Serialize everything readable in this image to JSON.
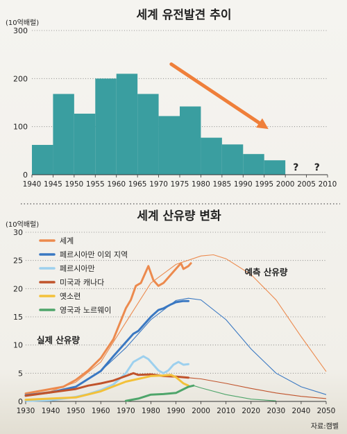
{
  "chart_data": [
    {
      "type": "bar",
      "title": "세계 유전발견 추이",
      "ylabel": "(10억배럴)",
      "ylim": [
        0,
        300
      ],
      "yticks": [
        0,
        100,
        200,
        300
      ],
      "xticks": [
        "1940",
        "1945",
        "1950",
        "1955",
        "1960",
        "1965",
        "1970",
        "1975",
        "1980",
        "1985",
        "1990",
        "1995",
        "2000",
        "2005",
        "2010"
      ],
      "bins": [
        {
          "from": 1940,
          "to": 1945,
          "value": 62
        },
        {
          "from": 1945,
          "to": 1950,
          "value": 168
        },
        {
          "from": 1950,
          "to": 1955,
          "value": 127
        },
        {
          "from": 1955,
          "to": 1960,
          "value": 200
        },
        {
          "from": 1960,
          "to": 1965,
          "value": 210
        },
        {
          "from": 1965,
          "to": 1970,
          "value": 168
        },
        {
          "from": 1970,
          "to": 1975,
          "value": 122
        },
        {
          "from": 1975,
          "to": 1980,
          "value": 142
        },
        {
          "from": 1980,
          "to": 1985,
          "value": 77
        },
        {
          "from": 1985,
          "to": 1990,
          "value": 63
        },
        {
          "from": 1990,
          "to": 1995,
          "value": 43
        },
        {
          "from": 1995,
          "to": 2000,
          "value": 30
        }
      ],
      "unknown_marks": [
        {
          "x": 2002.5,
          "text": "?"
        },
        {
          "x": 2007.5,
          "text": "?"
        }
      ],
      "trend_arrow": {
        "from": [
          1973,
          230
        ],
        "to": [
          1996,
          95
        ],
        "color": "#ef7f3a"
      },
      "bar_color": "#3a9ea0"
    },
    {
      "type": "line",
      "title": "세계 산유량 변화",
      "ylabel": "(10억배럴)",
      "ylim": [
        0,
        30
      ],
      "xlim": [
        1930,
        2050
      ],
      "yticks": [
        0,
        5,
        10,
        15,
        20,
        25,
        30
      ],
      "xticks": [
        "1930",
        "1940",
        "1950",
        "1960",
        "1970",
        "1980",
        "1990",
        "2000",
        "2010",
        "2020",
        "2030",
        "2040",
        "2050"
      ],
      "legend_position": "top-left",
      "annotations": [
        {
          "text": "예측 산유량",
          "x": 2026,
          "y": 22.4
        },
        {
          "text": "실제 산유량",
          "x": 1943,
          "y": 10.3
        }
      ],
      "series": [
        {
          "name": "세계",
          "color": "#ec8a4e",
          "actual": [
            [
              1930,
              1.4
            ],
            [
              1935,
              1.8
            ],
            [
              1940,
              2.2
            ],
            [
              1945,
              2.6
            ],
            [
              1950,
              3.8
            ],
            [
              1955,
              5.5
            ],
            [
              1960,
              7.7
            ],
            [
              1965,
              11
            ],
            [
              1970,
              16.5
            ],
            [
              1972,
              18
            ],
            [
              1974,
              20.5
            ],
            [
              1976,
              21
            ],
            [
              1978,
              23
            ],
            [
              1979,
              24
            ],
            [
              1981,
              21.5
            ],
            [
              1983,
              20.5
            ],
            [
              1985,
              21
            ],
            [
              1987,
              22
            ],
            [
              1989,
              23
            ],
            [
              1991,
              24
            ],
            [
              1992,
              24.5
            ],
            [
              1993,
              23.5
            ],
            [
              1995,
              24
            ],
            [
              1996,
              24.5
            ]
          ],
          "forecast": [
            [
              1930,
              1.2
            ],
            [
              1940,
              1.8
            ],
            [
              1950,
              3.4
            ],
            [
              1960,
              7
            ],
            [
              1970,
              14
            ],
            [
              1980,
              21
            ],
            [
              1990,
              24.3
            ],
            [
              2000,
              25.8
            ],
            [
              2005,
              26
            ],
            [
              2010,
              25.3
            ],
            [
              2020,
              22.5
            ],
            [
              2030,
              18
            ],
            [
              2040,
              11.5
            ],
            [
              2050,
              5.3
            ]
          ]
        },
        {
          "name": "페르시아만 이외 지역",
          "color": "#3a78c2",
          "actual": [
            [
              1930,
              1.1
            ],
            [
              1940,
              1.6
            ],
            [
              1950,
              2.6
            ],
            [
              1955,
              4
            ],
            [
              1960,
              5.4
            ],
            [
              1965,
              8
            ],
            [
              1970,
              10.5
            ],
            [
              1973,
              12
            ],
            [
              1975,
              12.5
            ],
            [
              1978,
              14
            ],
            [
              1980,
              15
            ],
            [
              1983,
              16.2
            ],
            [
              1985,
              16.5
            ],
            [
              1988,
              17.2
            ],
            [
              1990,
              17.6
            ],
            [
              1993,
              17.8
            ],
            [
              1995,
              17.8
            ]
          ],
          "forecast": [
            [
              1930,
              1
            ],
            [
              1940,
              1.5
            ],
            [
              1950,
              2.5
            ],
            [
              1960,
              5.4
            ],
            [
              1970,
              9.5
            ],
            [
              1980,
              14.5
            ],
            [
              1990,
              17.9
            ],
            [
              1995,
              18.3
            ],
            [
              2000,
              18
            ],
            [
              2010,
              14.5
            ],
            [
              2020,
              9.3
            ],
            [
              2030,
              5
            ],
            [
              2040,
              2.6
            ],
            [
              2050,
              1.2
            ]
          ]
        },
        {
          "name": "페르시아만",
          "color": "#9dd0ee",
          "actual": [
            [
              1930,
              0.1
            ],
            [
              1940,
              0.2
            ],
            [
              1950,
              0.8
            ],
            [
              1955,
              1.3
            ],
            [
              1960,
              2
            ],
            [
              1965,
              3
            ],
            [
              1970,
              5
            ],
            [
              1973,
              7
            ],
            [
              1975,
              7.5
            ],
            [
              1977,
              8
            ],
            [
              1979,
              7.5
            ],
            [
              1981,
              6.5
            ],
            [
              1983,
              5.5
            ],
            [
              1985,
              5
            ],
            [
              1987,
              5.5
            ],
            [
              1989,
              6.5
            ],
            [
              1991,
              7
            ],
            [
              1993,
              6.5
            ],
            [
              1995,
              6.6
            ]
          ],
          "forecast": []
        },
        {
          "name": "미국과 캐나다",
          "color": "#c0532b",
          "actual": [
            [
              1930,
              1
            ],
            [
              1940,
              1.6
            ],
            [
              1950,
              2.2
            ],
            [
              1955,
              2.8
            ],
            [
              1960,
              3.2
            ],
            [
              1965,
              3.7
            ],
            [
              1970,
              4.5
            ],
            [
              1973,
              5
            ],
            [
              1975,
              4.7
            ],
            [
              1980,
              4.8
            ],
            [
              1985,
              4.5
            ],
            [
              1990,
              4.4
            ],
            [
              1995,
              4.2
            ]
          ],
          "forecast": [
            [
              1995,
              4.2
            ],
            [
              2000,
              4
            ],
            [
              2010,
              3.2
            ],
            [
              2020,
              2.3
            ],
            [
              2030,
              1.5
            ],
            [
              2040,
              0.9
            ],
            [
              2050,
              0.5
            ]
          ]
        },
        {
          "name": "옛소련",
          "color": "#f3c13a",
          "actual": [
            [
              1930,
              0.3
            ],
            [
              1940,
              0.5
            ],
            [
              1950,
              0.7
            ],
            [
              1960,
              1.8
            ],
            [
              1970,
              3.5
            ],
            [
              1975,
              4
            ],
            [
              1980,
              4.5
            ],
            [
              1985,
              4.6
            ],
            [
              1988,
              4.7
            ],
            [
              1990,
              4.3
            ],
            [
              1993,
              3.2
            ],
            [
              1995,
              2.8
            ]
          ],
          "forecast": []
        },
        {
          "name": "영국과 노르웨이",
          "color": "#4ea56a",
          "actual": [
            [
              1970,
              0.1
            ],
            [
              1975,
              0.5
            ],
            [
              1980,
              1.2
            ],
            [
              1985,
              1.3
            ],
            [
              1990,
              1.5
            ],
            [
              1995,
              2.6
            ],
            [
              1997,
              2.8
            ]
          ],
          "forecast": [
            [
              1997,
              2.8
            ],
            [
              2000,
              2.4
            ],
            [
              2010,
              1.2
            ],
            [
              2020,
              0.4
            ],
            [
              2030,
              0.1
            ]
          ]
        }
      ]
    }
  ],
  "source_note": "자료:캠벨"
}
